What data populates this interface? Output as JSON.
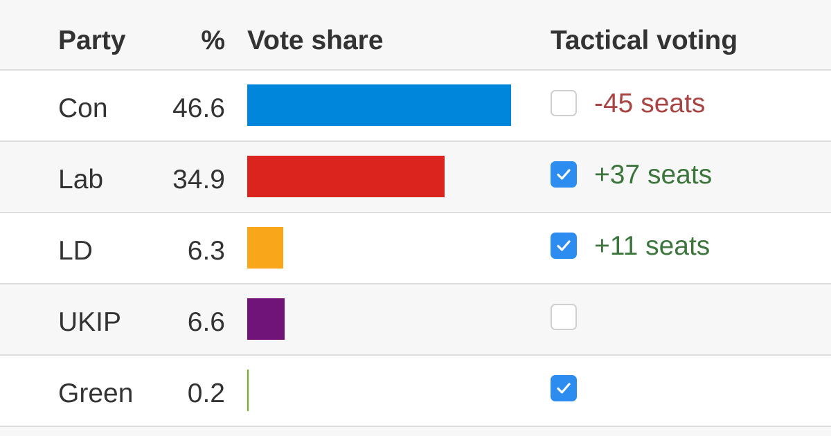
{
  "chart_data": {
    "type": "bar",
    "columns": {
      "party": "Party",
      "percent": "%",
      "vote_share": "Vote share",
      "tactical": "Tactical voting"
    },
    "categories": [
      "Con",
      "Lab",
      "LD",
      "UKIP",
      "Green"
    ],
    "values": [
      46.6,
      34.9,
      6.3,
      6.6,
      0.2
    ],
    "value_labels": [
      "46.6",
      "34.9",
      "6.3",
      "6.6",
      "0.2"
    ],
    "colors": [
      "#0087dc",
      "#dc241f",
      "#faa61a",
      "#70147a",
      "#6ab023"
    ],
    "tactical_checked": [
      false,
      true,
      true,
      false,
      true
    ],
    "seat_changes": [
      "-45 seats",
      "+37 seats",
      "+11 seats",
      "",
      ""
    ],
    "seat_colors": [
      "#a94442",
      "#3c763d",
      "#3c763d",
      "#333333",
      "#333333"
    ],
    "xlim": [
      0,
      46.6
    ]
  }
}
